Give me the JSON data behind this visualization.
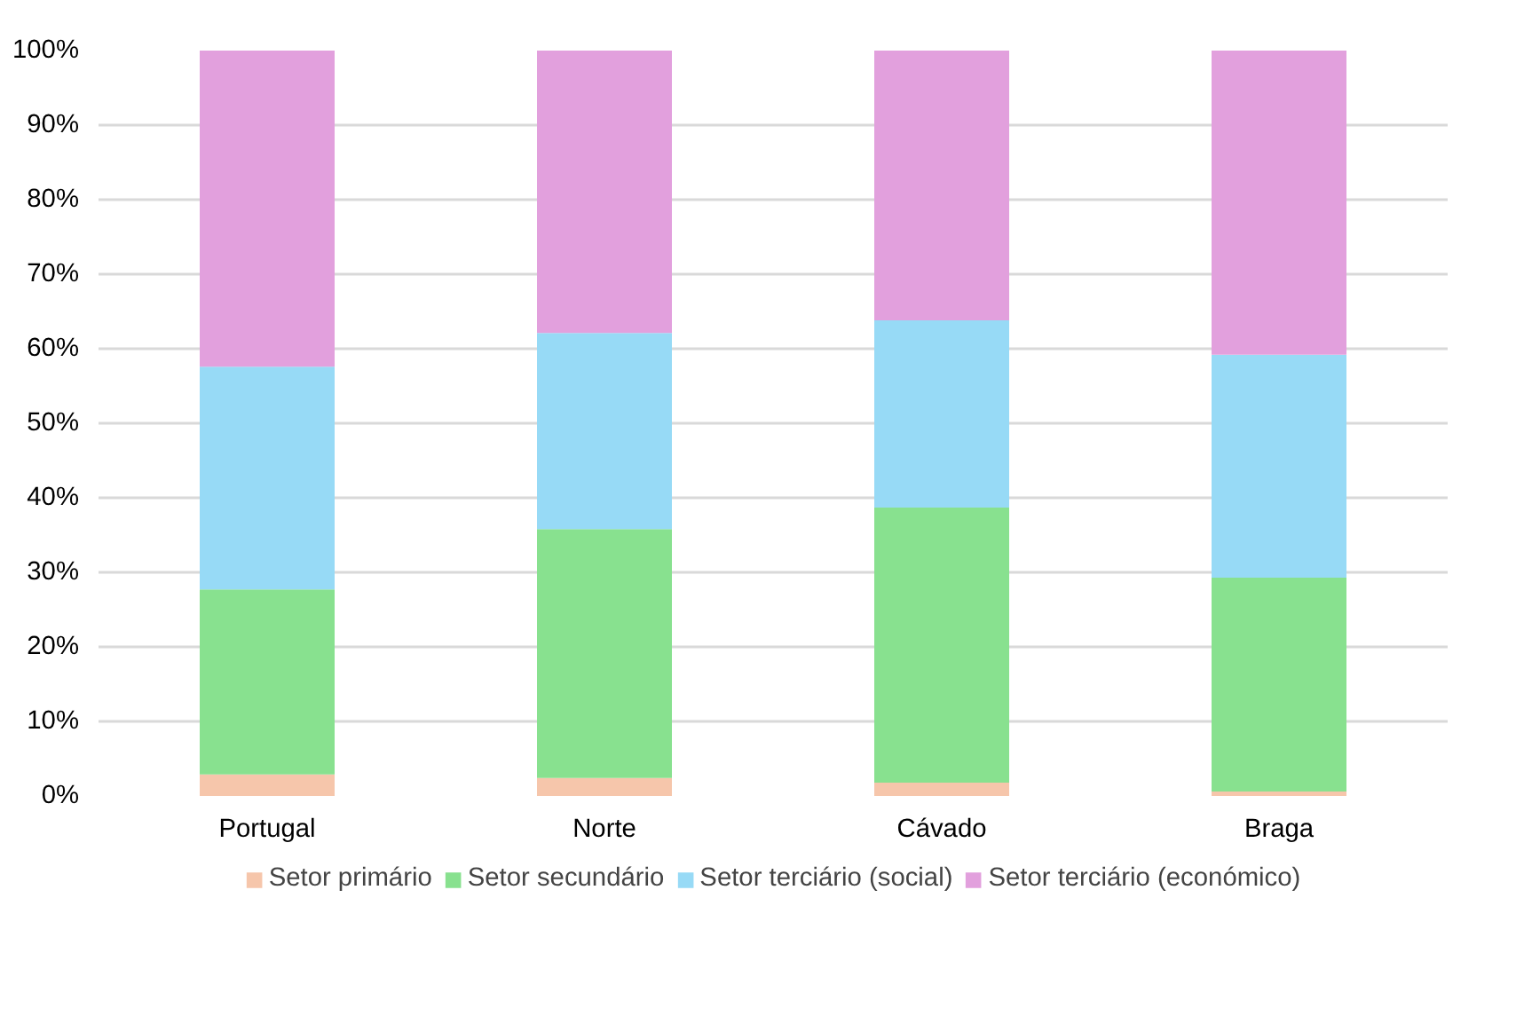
{
  "chart_data": {
    "type": "bar",
    "stacked": true,
    "categories": [
      "Portugal",
      "Norte",
      "Cávado",
      "Braga"
    ],
    "series": [
      {
        "name": "Setor primário",
        "color": "#f6c6ab",
        "values": [
          2.9,
          2.4,
          1.8,
          0.6
        ]
      },
      {
        "name": "Setor secundário",
        "color": "#88e18f",
        "values": [
          24.8,
          33.4,
          36.9,
          28.7
        ]
      },
      {
        "name": "Setor terciário (social)",
        "color": "#97daf6",
        "values": [
          29.9,
          26.3,
          25.1,
          29.9
        ]
      },
      {
        "name": "Setor terciário (económico)",
        "color": "#e2a0dd",
        "values": [
          42.4,
          37.9,
          36.2,
          40.8
        ]
      }
    ],
    "ylim": [
      0,
      100
    ],
    "yticks": [
      {
        "value": 0,
        "label": "0%"
      },
      {
        "value": 10,
        "label": "10%"
      },
      {
        "value": 20,
        "label": "20%"
      },
      {
        "value": 30,
        "label": "30%"
      },
      {
        "value": 40,
        "label": "40%"
      },
      {
        "value": 50,
        "label": "50%"
      },
      {
        "value": 60,
        "label": "60%"
      },
      {
        "value": 70,
        "label": "70%"
      },
      {
        "value": 80,
        "label": "80%"
      },
      {
        "value": 90,
        "label": "90%"
      },
      {
        "value": 100,
        "label": "100%"
      }
    ],
    "grid": "y",
    "legend": "bottom"
  }
}
